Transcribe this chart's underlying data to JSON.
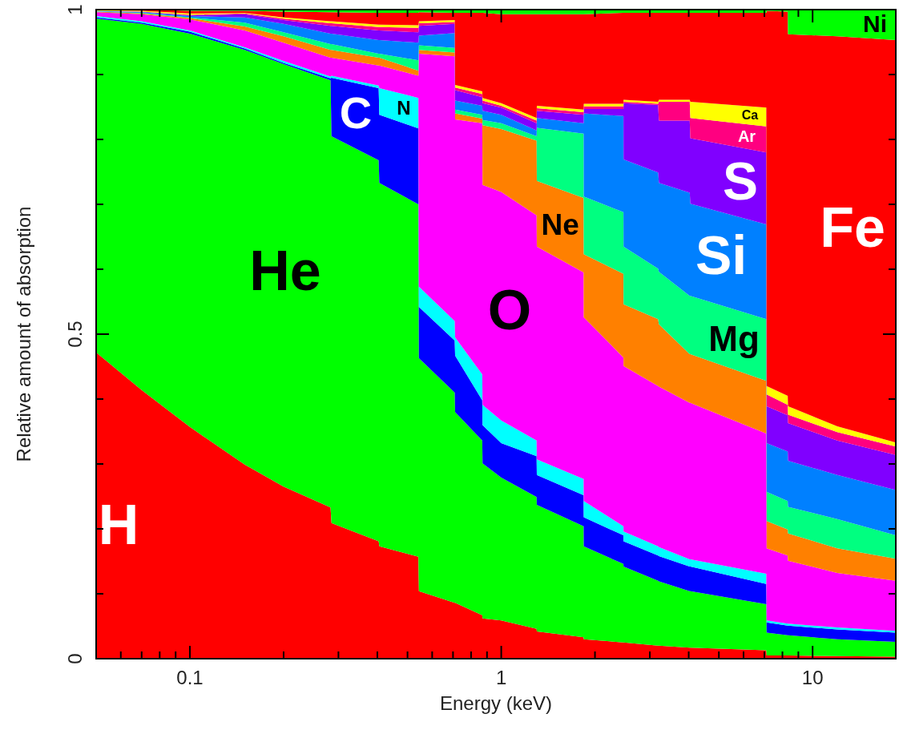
{
  "chart_data": {
    "type": "area",
    "stacked": true,
    "log": "x",
    "xlabel": "Energy (keV)",
    "ylabel": "Relative amount of absorption",
    "xlim": [
      0.05,
      18.5
    ],
    "ylim": [
      0,
      1
    ],
    "xticks": [
      {
        "value": 0.06,
        "label": null
      },
      {
        "value": 0.07,
        "label": null
      },
      {
        "value": 0.08,
        "label": null
      },
      {
        "value": 0.09,
        "label": null
      },
      0.1,
      {
        "value": 0.2,
        "label": null
      },
      {
        "value": 0.3,
        "label": null
      },
      {
        "value": 0.4,
        "label": null
      },
      {
        "value": 0.5,
        "label": null
      },
      {
        "value": 0.6,
        "label": null
      },
      {
        "value": 0.7,
        "label": null
      },
      {
        "value": 0.8,
        "label": null
      },
      {
        "value": 0.9,
        "label": null
      },
      1,
      {
        "value": 2,
        "label": null
      },
      {
        "value": 3,
        "label": null
      },
      {
        "value": 4,
        "label": null
      },
      {
        "value": 5,
        "label": null
      },
      {
        "value": 6,
        "label": null
      },
      {
        "value": 7,
        "label": null
      },
      {
        "value": 8,
        "label": null
      },
      {
        "value": 9,
        "label": null
      },
      10
    ],
    "yticks": [
      0,
      {
        "value": 0.1,
        "label": null
      },
      {
        "value": 0.2,
        "label": null
      },
      {
        "value": 0.3,
        "label": null
      },
      {
        "value": 0.4,
        "label": null
      },
      0.5,
      {
        "value": 0.6,
        "label": null
      },
      {
        "value": 0.7,
        "label": null
      },
      {
        "value": 0.8,
        "label": null
      },
      {
        "value": 0.9,
        "label": null
      },
      1
    ],
    "x": [
      0.05,
      0.07,
      0.1,
      0.15,
      0.2,
      0.283,
      0.285,
      0.404,
      0.406,
      0.542,
      0.544,
      0.709,
      0.711,
      0.869,
      0.871,
      1.0,
      1.299,
      1.301,
      1.839,
      1.841,
      2.469,
      2.471,
      3.19,
      3.21,
      4.03,
      4.05,
      7.1,
      7.12,
      8.32,
      8.34,
      12,
      18.5
    ],
    "series": [
      {
        "name": "H",
        "color": "#ff0000",
        "values": [
          0.472,
          0.414,
          0.357,
          0.299,
          0.265,
          0.233,
          0.209,
          0.181,
          0.173,
          0.157,
          0.104,
          0.086,
          0.086,
          0.067,
          0.062,
          0.059,
          0.046,
          0.042,
          0.033,
          0.03,
          0.025,
          0.025,
          0.02,
          0.02,
          0.017,
          0.017,
          0.013,
          0.005,
          0.005,
          0.005,
          0.004,
          0.003
        ]
      },
      {
        "name": "He",
        "color": "#00ff00",
        "values": [
          0.514,
          0.564,
          0.606,
          0.639,
          0.651,
          0.658,
          0.596,
          0.587,
          0.56,
          0.543,
          0.359,
          0.324,
          0.294,
          0.269,
          0.239,
          0.22,
          0.203,
          0.195,
          0.171,
          0.143,
          0.121,
          0.117,
          0.1,
          0.099,
          0.087,
          0.087,
          0.071,
          0.035,
          0.031,
          0.031,
          0.026,
          0.023
        ]
      },
      {
        "name": "C",
        "color": "#0000ff",
        "values": [
          0.002,
          0.002,
          0.003,
          0.002,
          0.002,
          0.003,
          0.09,
          0.111,
          0.105,
          0.117,
          0.079,
          0.08,
          0.087,
          0.062,
          0.059,
          0.053,
          0.063,
          0.046,
          0.048,
          0.045,
          0.044,
          0.039,
          0.039,
          0.039,
          0.038,
          0.038,
          0.031,
          0.016,
          0.015,
          0.015,
          0.015,
          0.014
        ]
      },
      {
        "name": "N",
        "color": "#00ffff",
        "values": [
          0.002,
          0.002,
          0.002,
          0.002,
          0.003,
          0.003,
          0.003,
          0.004,
          0.041,
          0.047,
          0.031,
          0.03,
          0.028,
          0.04,
          0.031,
          0.035,
          0.024,
          0.024,
          0.025,
          0.025,
          0.014,
          0.015,
          0.014,
          0.014,
          0.011,
          0.011,
          0.016,
          0.003,
          0.003,
          0.003,
          0.003,
          0.003
        ]
      },
      {
        "name": "O",
        "color": "#ff00ff",
        "values": [
          0.006,
          0.011,
          0.017,
          0.026,
          0.028,
          0.029,
          0.028,
          0.031,
          0.035,
          0.034,
          0.359,
          0.408,
          0.336,
          0.387,
          0.339,
          0.352,
          0.347,
          0.328,
          0.318,
          0.283,
          0.26,
          0.255,
          0.247,
          0.247,
          0.241,
          0.241,
          0.216,
          0.111,
          0.105,
          0.097,
          0.084,
          0.077
        ]
      },
      {
        "name": "Ne",
        "color": "#ff8000",
        "values": [
          0.001,
          0.001,
          0.002,
          0.006,
          0.01,
          0.012,
          0.012,
          0.012,
          0.012,
          0.008,
          0.006,
          0.006,
          0.009,
          0.007,
          0.092,
          0.097,
          0.115,
          0.101,
          0.115,
          0.097,
          0.129,
          0.095,
          0.103,
          0.096,
          0.075,
          0.075,
          0.081,
          0.042,
          0.04,
          0.042,
          0.038,
          0.034
        ]
      },
      {
        "name": "Mg",
        "color": "#00ff80",
        "values": [
          0,
          0.001,
          0.001,
          0.006,
          0.006,
          0.009,
          0.009,
          0.006,
          0.006,
          0.016,
          0.007,
          0.007,
          0.006,
          0.006,
          0.008,
          0.009,
          0.007,
          0.082,
          0.099,
          0.089,
          0.095,
          0.089,
          0.078,
          0.081,
          0.09,
          0.09,
          0.095,
          0.045,
          0.044,
          0.041,
          0.045,
          0.036
        ]
      },
      {
        "name": "Si",
        "color": "#0080ff",
        "values": [
          0.001,
          0.001,
          0.002,
          0.008,
          0.013,
          0.016,
          0.016,
          0.021,
          0.021,
          0.027,
          0.015,
          0.023,
          0.014,
          0.014,
          0.014,
          0.013,
          0.009,
          0.015,
          0.016,
          0.128,
          0.148,
          0.134,
          0.148,
          0.137,
          0.159,
          0.142,
          0.146,
          0.075,
          0.076,
          0.071,
          0.068,
          0.07
        ]
      },
      {
        "name": "S",
        "color": "#8000ff",
        "values": [
          0,
          0.001,
          0.001,
          0.005,
          0.006,
          0.012,
          0.012,
          0.015,
          0.015,
          0.016,
          0.015,
          0.014,
          0.016,
          0.013,
          0.012,
          0.011,
          0.011,
          0.011,
          0.013,
          0.007,
          0.011,
          0.087,
          0.104,
          0.096,
          0.111,
          0.101,
          0.111,
          0.057,
          0.056,
          0.058,
          0.053,
          0.054
        ]
      },
      {
        "name": "Ar",
        "color": "#ff0080",
        "values": [
          0,
          0,
          0.001,
          0.001,
          0.002,
          0.004,
          0.004,
          0.005,
          0.005,
          0.007,
          0.004,
          0.003,
          0.004,
          0.005,
          0.004,
          0.003,
          0.004,
          0.004,
          0.004,
          0.004,
          0.004,
          0.002,
          0.002,
          0.029,
          0.029,
          0.031,
          0.04,
          0.018,
          0.016,
          0.013,
          0.013,
          0.013
        ]
      },
      {
        "name": "Ca",
        "color": "#ffff00",
        "values": [
          0.001,
          0.001,
          0.002,
          0.001,
          0.002,
          0.003,
          0.003,
          0.004,
          0.004,
          0.004,
          0.003,
          0.003,
          0.004,
          0.004,
          0.004,
          0.004,
          0.004,
          0.004,
          0.004,
          0.004,
          0.004,
          0.003,
          0.003,
          0.003,
          0.003,
          0.025,
          0.029,
          0.013,
          0.014,
          0.013,
          0.009,
          0.006
        ]
      },
      {
        "name": "Fe",
        "color": "#ff0000",
        "values": [
          0.001,
          0.002,
          0.004,
          0.003,
          0.009,
          0.014,
          0.014,
          0.018,
          0.018,
          0.019,
          0.014,
          0.011,
          0.111,
          0.121,
          0.131,
          0.137,
          0.16,
          0.141,
          0.147,
          0.138,
          0.14,
          0.134,
          0.137,
          0.134,
          0.134,
          0.137,
          0.146,
          0.578,
          0.592,
          0.573,
          0.601,
          0.62
        ]
      },
      {
        "name": "Ni",
        "color": "#00ff00",
        "values": [
          0,
          0,
          0.002,
          0.002,
          0.003,
          0.004,
          0.004,
          0.005,
          0.005,
          0.005,
          0.004,
          0.005,
          0.005,
          0.005,
          0.005,
          0.007,
          0.007,
          0.007,
          0.007,
          0.007,
          0.005,
          0.005,
          0.005,
          0.005,
          0.005,
          0.005,
          0.005,
          0.002,
          0.003,
          0.038,
          0.041,
          0.047
        ]
      }
    ]
  }
}
